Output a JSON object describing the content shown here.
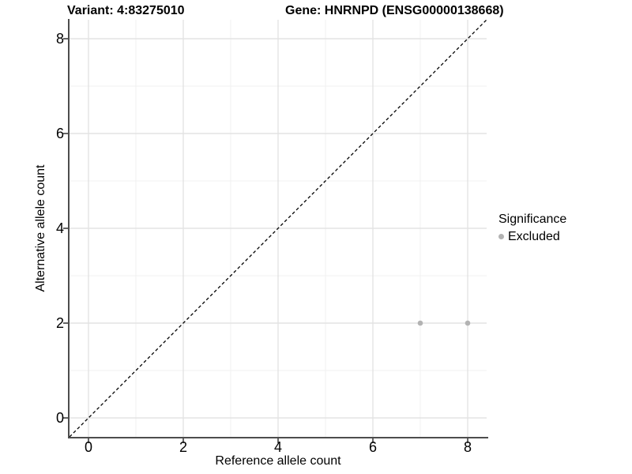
{
  "titles": {
    "left": "Variant: 4:83275010",
    "right": "Gene: HNRNPD (ENSG00000138668)"
  },
  "chart_data": {
    "type": "scatter",
    "xlabel": "Reference allele count",
    "ylabel": "Alternative allele count",
    "xlim": [
      -0.4,
      8.4
    ],
    "ylim": [
      -0.4,
      8.4
    ],
    "xticks": [
      0,
      2,
      4,
      6,
      8
    ],
    "yticks": [
      0,
      2,
      4,
      6,
      8
    ],
    "minor_xticks": [
      1,
      3,
      5,
      7
    ],
    "minor_yticks": [
      1,
      3,
      5,
      7
    ],
    "grid": true,
    "series": [
      {
        "name": "Excluded",
        "color": "#b3b3b3",
        "marker": "circle",
        "points": [
          [
            7,
            2
          ],
          [
            8,
            2
          ]
        ]
      }
    ],
    "reference_line": {
      "kind": "identity",
      "style": "dashed",
      "color": "#000000"
    },
    "legend": {
      "title": "Significance",
      "position": "right",
      "entries": [
        {
          "label": "Excluded",
          "color": "#b3b3b3"
        }
      ]
    }
  },
  "colors": {
    "background": "#ffffff",
    "grid_major": "#e3e3e3",
    "grid_minor": "#f0f0f0",
    "axis_line": "#4d4d4d",
    "tick_mark": "#333333",
    "point": "#b3b3b3",
    "text": "#000000"
  }
}
